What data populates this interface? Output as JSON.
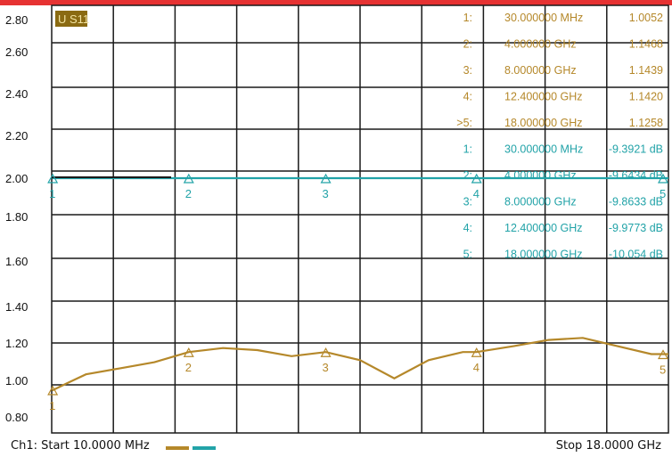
{
  "trace_label": "U S11",
  "footer": {
    "start": "Ch1: Start  10.0000 MHz",
    "stop": "Stop  18.0000 GHz"
  },
  "colors": {
    "trace1": "#b5882a",
    "trace2": "#22a3a8",
    "grid": "#1a1a1a",
    "label_bg": "#8a6a12",
    "label_text": "#f2e3a0",
    "top_strip": "#e63232"
  },
  "marker_table": {
    "trace1": [
      {
        "idx": "1:",
        "freq": "30.000000 MHz",
        "value": "1.0052"
      },
      {
        "idx": "2:",
        "freq": "4.000000 GHz",
        "value": "1.1468"
      },
      {
        "idx": "3:",
        "freq": "8.000000 GHz",
        "value": "1.1439"
      },
      {
        "idx": "4:",
        "freq": "12.400000 GHz",
        "value": "1.1420"
      },
      {
        "idx": ">5:",
        "freq": "18.000000 GHz",
        "value": "1.1258"
      }
    ],
    "trace2": [
      {
        "idx": "1:",
        "freq": "30.000000 MHz",
        "value": "-9.3921 dB"
      },
      {
        "idx": "2:",
        "freq": "4.000000 GHz",
        "value": "-9.6434 dB"
      },
      {
        "idx": "3:",
        "freq": "8.000000 GHz",
        "value": "-9.8633 dB"
      },
      {
        "idx": "4:",
        "freq": "12.400000 GHz",
        "value": "-9.9773 dB"
      },
      {
        "idx": "5:",
        "freq": "18.000000 GHz",
        "value": "-10.054 dB"
      }
    ]
  },
  "chart_data": {
    "type": "line",
    "x_range_hz": [
      10000000,
      18000000000
    ],
    "ylim": [
      0.8,
      2.8
    ],
    "y_ticks": [
      "2.80",
      "2.60",
      "2.40",
      "2.20",
      "2.00",
      "1.80",
      "1.60",
      "1.40",
      "1.20",
      "1.00",
      "0.80"
    ],
    "grid": true,
    "series": [
      {
        "key": "trace1",
        "x_ghz": [
          0.01,
          0.5,
          1.0,
          2.0,
          3.0,
          4.0,
          5.0,
          6.0,
          7.0,
          8.0,
          9.0,
          10.0,
          11.0,
          12.0,
          12.4,
          13.5,
          14.5,
          15.5,
          16.5,
          17.5,
          18.0
        ],
        "values": [
          0.95,
          0.99,
          1.03,
          1.06,
          1.09,
          1.14,
          1.16,
          1.15,
          1.12,
          1.14,
          1.1,
          1.01,
          1.1,
          1.14,
          1.14,
          1.17,
          1.2,
          1.21,
          1.17,
          1.13,
          1.13
        ]
      },
      {
        "key": "trace2",
        "x_ghz": [
          0.01,
          18.0
        ],
        "values": [
          2.0,
          2.0
        ]
      }
    ],
    "markers": [
      {
        "label": "1",
        "x_ghz": 0.03
      },
      {
        "label": "2",
        "x_ghz": 4.0
      },
      {
        "label": "3",
        "x_ghz": 8.0
      },
      {
        "label": "4",
        "x_ghz": 12.4
      },
      {
        "label": "5",
        "x_ghz": 18.0
      }
    ]
  }
}
